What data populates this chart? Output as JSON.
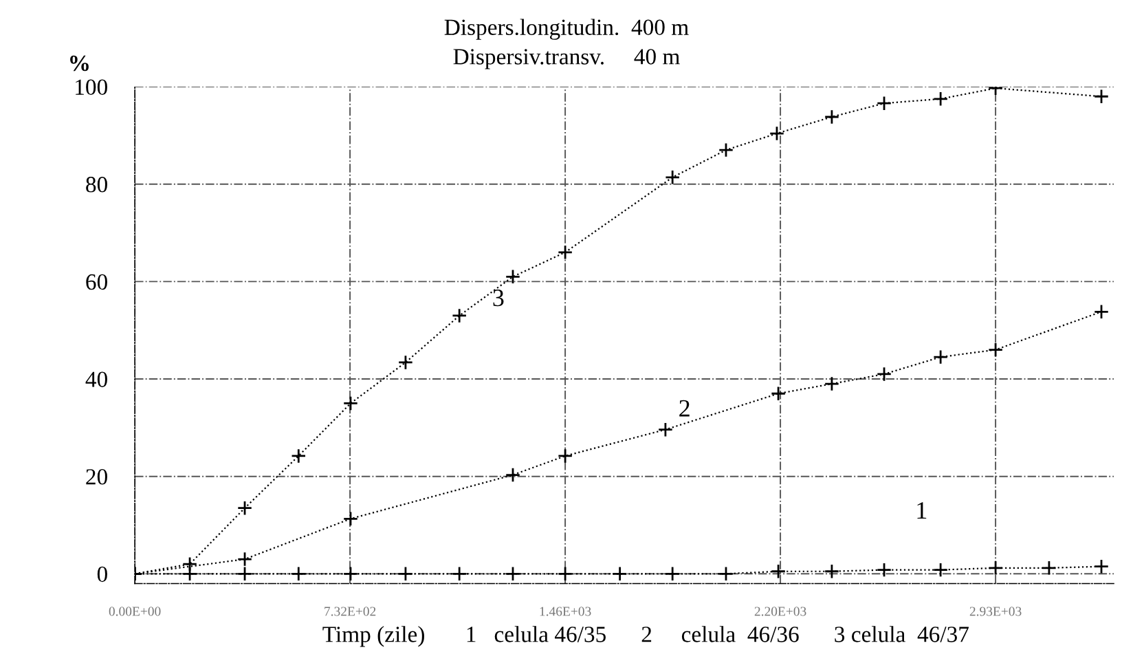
{
  "chart_data": {
    "type": "line",
    "title": "Dispers.longitudin.  400 m",
    "subtitle": "Dispersiv.transv.     40 m",
    "xlabel": "Timp (zile)       1   celula 46/35      2     celula  46/36      3 celula  46/37",
    "ylabel": "%",
    "series": [
      {
        "name": "1",
        "color": "#000000",
        "x": [
          0,
          187,
          374,
          557,
          734,
          921,
          1104,
          1286,
          1464,
          1650,
          1829,
          2011,
          2189,
          2371,
          2549,
          2741,
          2928,
          3110,
          3288
        ],
        "values": [
          0,
          0,
          0,
          0,
          0,
          0,
          0,
          0,
          0,
          0,
          0,
          0,
          0.5,
          0.5,
          0.8,
          0.8,
          1.2,
          1.2,
          1.5
        ]
      },
      {
        "name": "2",
        "color": "#000000",
        "x": [
          0,
          374,
          734,
          1286,
          1464,
          1805,
          2189,
          2371,
          2549,
          2741,
          2928,
          3288
        ],
        "values": [
          0,
          3,
          11.3,
          20.3,
          24.2,
          29.6,
          37,
          39,
          41,
          44.5,
          46,
          53.8
        ]
      },
      {
        "name": "3",
        "color": "#000000",
        "x": [
          0,
          187,
          374,
          557,
          734,
          921,
          1104,
          1286,
          1464,
          1829,
          2011,
          2184,
          2371,
          2549,
          2741,
          2928,
          3288
        ],
        "values": [
          0,
          2,
          13.5,
          24.2,
          35,
          43.4,
          53,
          61,
          66,
          81.4,
          87,
          90.4,
          93.8,
          96.6,
          97.5,
          99.7,
          98
        ]
      }
    ],
    "xlim": [
      0,
      3330
    ],
    "ylim": [
      -2,
      100
    ],
    "xticks": [
      {
        "value": 0,
        "label": "0.00E+00"
      },
      {
        "value": 732,
        "label": "7.32E+02"
      },
      {
        "value": 1464,
        "label": "1.46E+03"
      },
      {
        "value": 2196,
        "label": "2.20E+03"
      },
      {
        "value": 2928,
        "label": "2.93E+03"
      }
    ],
    "yticks": [
      0,
      20,
      40,
      60,
      80,
      100
    ],
    "grid": true,
    "marker": "cross",
    "line_style": "dotted"
  }
}
